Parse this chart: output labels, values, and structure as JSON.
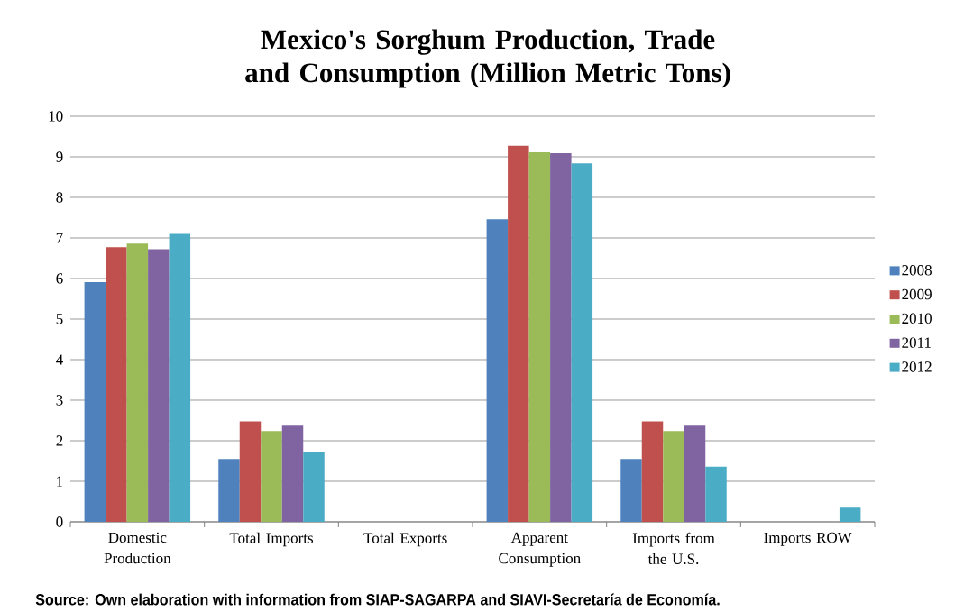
{
  "chart_data": {
    "type": "bar",
    "title": "Mexico's Sorghum Production, Trade and Consumption (Million Metric Tons)",
    "categories": [
      "Domestic Production",
      "Total Imports",
      "Total Exports",
      "Apparent Consumption",
      "Imports from the U.S.",
      "Imports ROW"
    ],
    "series": [
      {
        "name": "2008",
        "color": "#4f81bd",
        "values": [
          5.91,
          1.55,
          0,
          7.46,
          1.55,
          0
        ]
      },
      {
        "name": "2009",
        "color": "#c0504d",
        "values": [
          6.77,
          2.48,
          0,
          9.27,
          2.48,
          0
        ]
      },
      {
        "name": "2010",
        "color": "#9bbb59",
        "values": [
          6.86,
          2.24,
          0,
          9.11,
          2.24,
          0
        ]
      },
      {
        "name": "2011",
        "color": "#8064a2",
        "values": [
          6.72,
          2.37,
          0,
          9.09,
          2.37,
          0
        ]
      },
      {
        "name": "2012",
        "color": "#4bacc6",
        "values": [
          7.1,
          1.71,
          0,
          8.84,
          1.36,
          0.35
        ]
      }
    ],
    "ylim": [
      0,
      10
    ],
    "yticks": [
      0,
      1,
      2,
      3,
      4,
      5,
      6,
      7,
      8,
      9,
      10
    ],
    "grid": "y",
    "legend": "right",
    "annotations": [
      "Source: Own elaboration with information from SIAP-SAGARPA and SIAVI-Secretaría de Economía."
    ]
  }
}
